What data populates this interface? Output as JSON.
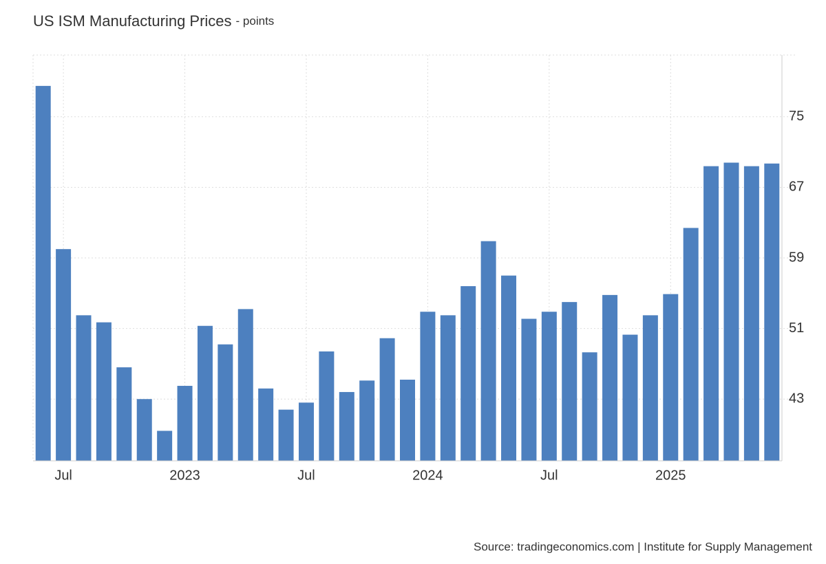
{
  "chart_data": {
    "type": "bar",
    "title": "US ISM Manufacturing Prices",
    "subtitle": "- points",
    "source": "Source: tradingeconomics.com | Institute for Supply Management",
    "categories": [
      null,
      "Jul",
      null,
      null,
      null,
      null,
      null,
      "2023",
      null,
      null,
      null,
      null,
      null,
      "Jul",
      null,
      null,
      null,
      null,
      null,
      "2024",
      null,
      null,
      null,
      null,
      null,
      "Jul",
      null,
      null,
      null,
      null,
      null,
      "2025",
      null,
      null,
      null,
      null,
      null
    ],
    "values": [
      78.5,
      60.0,
      52.5,
      51.7,
      46.6,
      43.0,
      39.4,
      44.5,
      51.3,
      49.2,
      53.2,
      44.2,
      41.8,
      42.6,
      48.4,
      43.8,
      45.1,
      49.9,
      45.2,
      52.9,
      52.5,
      55.8,
      60.9,
      57.0,
      52.1,
      52.9,
      54.0,
      48.3,
      54.8,
      50.3,
      52.5,
      54.9,
      62.4,
      69.4,
      69.8,
      69.4,
      69.7
    ],
    "color": "#4d80bf",
    "ylim": [
      36,
      82
    ],
    "yticks": [
      43,
      51,
      59,
      67,
      75
    ],
    "grid": true
  }
}
